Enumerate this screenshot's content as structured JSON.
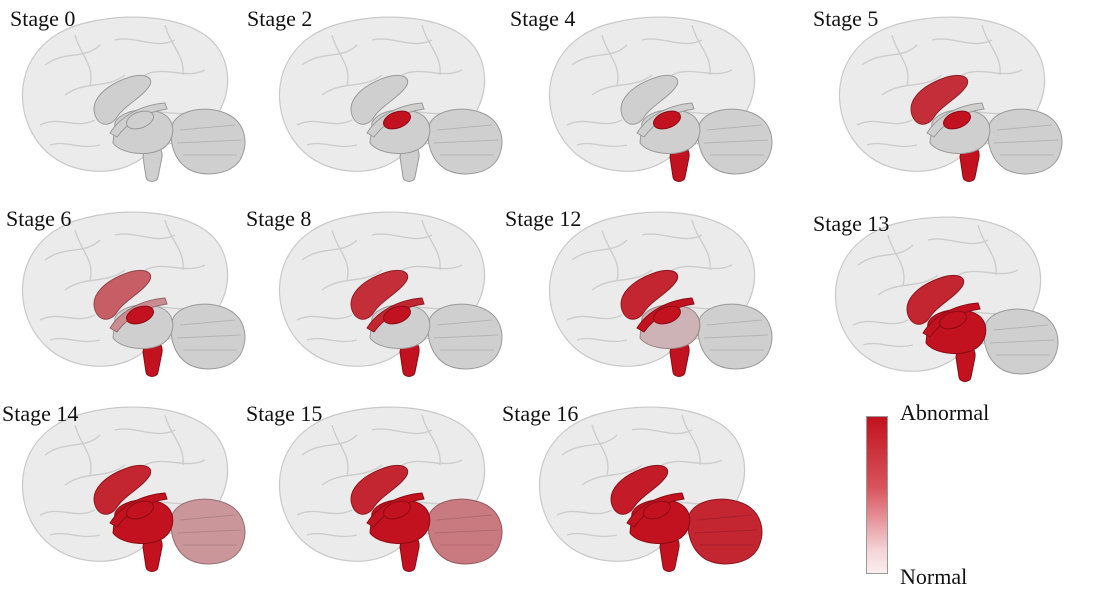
{
  "panels": [
    {
      "label": "Stage 0",
      "state": {
        "basal": 0,
        "hippo": 0,
        "thalamus": 0,
        "brainstem": 0,
        "cerebellum": 0
      }
    },
    {
      "label": "Stage 2",
      "state": {
        "basal": 0,
        "hippo": 0,
        "thalamus": 0,
        "brainstem": 0,
        "cerebellum": 0,
        "putamen": 1
      }
    },
    {
      "label": "Stage 4",
      "state": {
        "basal": 0,
        "hippo": 0,
        "thalamus": 0,
        "brainstem": 1,
        "cerebellum": 0,
        "putamen": 1
      }
    },
    {
      "label": "Stage 5",
      "state": {
        "basal": 0.85,
        "hippo": 0,
        "thalamus": 0,
        "brainstem": 1,
        "cerebellum": 0,
        "putamen": 1
      }
    },
    {
      "label": "Stage 6",
      "state": {
        "basal": 0.6,
        "hippo": 0.35,
        "thalamus": 0,
        "brainstem": 1,
        "cerebellum": 0,
        "putamen": 1
      }
    },
    {
      "label": "Stage 8",
      "state": {
        "basal": 0.85,
        "hippo": 0.9,
        "thalamus": 0,
        "brainstem": 1,
        "cerebellum": 0,
        "putamen": 1
      }
    },
    {
      "label": "Stage 12",
      "state": {
        "basal": 0.9,
        "hippo": 1,
        "thalamus": 0.15,
        "brainstem": 1,
        "cerebellum": 0,
        "putamen": 1
      }
    },
    {
      "label": "Stage 13",
      "state": {
        "basal": 0.9,
        "hippo": 1,
        "thalamus": 1,
        "brainstem": 1,
        "cerebellum": 0,
        "putamen": 1
      }
    },
    {
      "label": "Stage 14",
      "state": {
        "basal": 0.9,
        "hippo": 1,
        "thalamus": 1,
        "brainstem": 1,
        "cerebellum": 0.3,
        "putamen": 1
      }
    },
    {
      "label": "Stage 15",
      "state": {
        "basal": 0.9,
        "hippo": 1,
        "thalamus": 1,
        "brainstem": 1,
        "cerebellum": 0.45,
        "putamen": 1
      }
    },
    {
      "label": "Stage 16",
      "state": {
        "basal": 0.95,
        "hippo": 1,
        "thalamus": 1,
        "brainstem": 1,
        "cerebellum": 0.9,
        "putamen": 1
      }
    }
  ],
  "legend": {
    "top_label": "Abnormal",
    "bottom_label": "Normal"
  },
  "colors": {
    "abnormal": "#c2121f",
    "normal": "#cfcfcf",
    "cortex": "#e4e4e4"
  }
}
